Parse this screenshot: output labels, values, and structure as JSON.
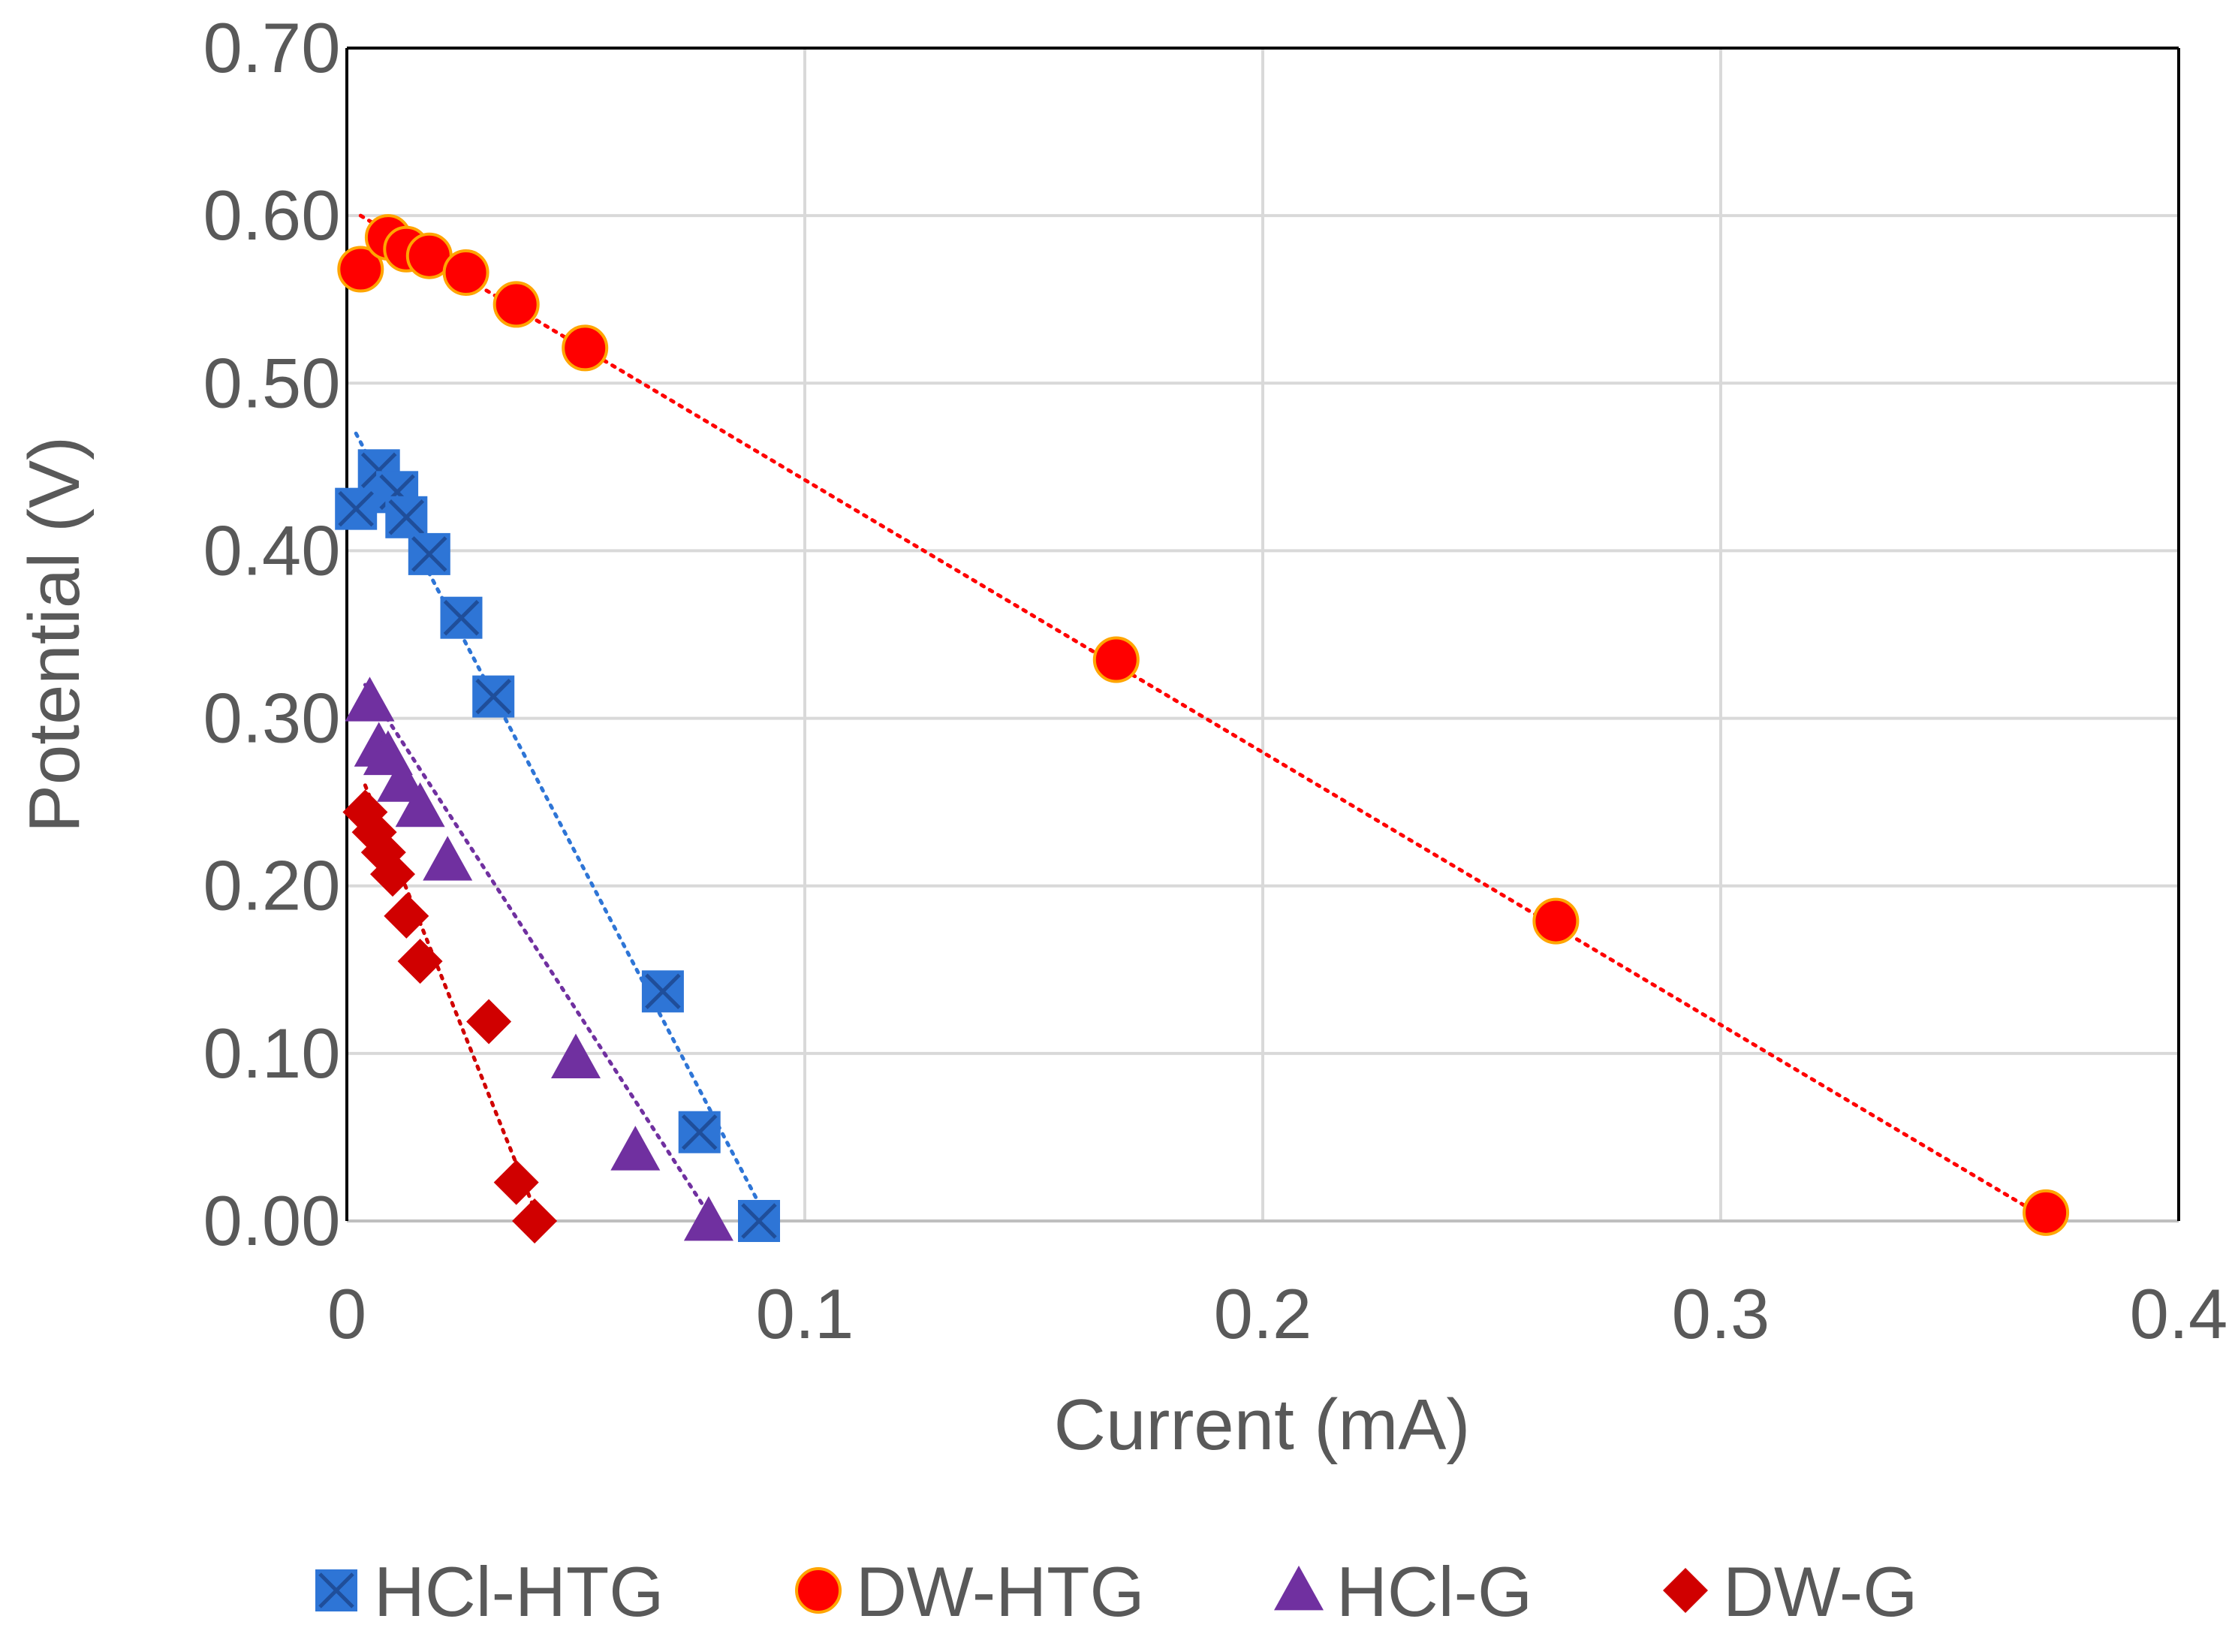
{
  "chart_data": {
    "type": "scatter",
    "title": "",
    "xlabel": "Current (mA)",
    "ylabel": "Potential (V)",
    "xlim": [
      0,
      0.4
    ],
    "ylim": [
      0,
      0.7
    ],
    "xticks": [
      0,
      0.1,
      0.2,
      0.3,
      0.4
    ],
    "xtick_labels": [
      "0",
      "0.1",
      "0.2",
      "0.3",
      "0.4"
    ],
    "yticks": [
      0,
      0.1,
      0.2,
      0.3,
      0.4,
      0.5,
      0.6,
      0.7
    ],
    "ytick_labels": [
      "0.00",
      "0.10",
      "0.20",
      "0.30",
      "0.40",
      "0.50",
      "0.60",
      "0.70"
    ],
    "grid": true,
    "legend_position": "bottom",
    "series": [
      {
        "name": "HCl-HTG",
        "marker": "x-square",
        "color": "#2E75D6",
        "x": [
          0.002,
          0.007,
          0.011,
          0.013,
          0.018,
          0.025,
          0.032,
          0.069,
          0.077,
          0.09
        ],
        "y": [
          0.425,
          0.448,
          0.435,
          0.42,
          0.398,
          0.36,
          0.313,
          0.137,
          0.053,
          0.0
        ],
        "trendline": {
          "x": [
            0.002,
            0.092
          ],
          "y": [
            0.47,
            0.0
          ],
          "color": "#2E75D6"
        }
      },
      {
        "name": "DW-HTG",
        "marker": "circle",
        "color": "#FF0000",
        "x": [
          0.003,
          0.009,
          0.013,
          0.018,
          0.026,
          0.037,
          0.052,
          0.168,
          0.264,
          0.371
        ],
        "y": [
          0.568,
          0.587,
          0.58,
          0.576,
          0.566,
          0.547,
          0.521,
          0.335,
          0.179,
          0.005
        ],
        "trendline": {
          "x": [
            0.003,
            0.372
          ],
          "y": [
            0.6,
            0.0
          ],
          "color": "#FF0000"
        }
      },
      {
        "name": "HCl-G",
        "marker": "triangle",
        "color": "#7030A0",
        "x": [
          0.005,
          0.007,
          0.009,
          0.012,
          0.016,
          0.022,
          0.05,
          0.063,
          0.079
        ],
        "y": [
          0.31,
          0.283,
          0.278,
          0.262,
          0.247,
          0.215,
          0.097,
          0.042,
          0.0
        ],
        "trendline": {
          "x": [
            0.004,
            0.08
          ],
          "y": [
            0.32,
            0.0
          ],
          "color": "#7030A0"
        }
      },
      {
        "name": "DW-G",
        "marker": "diamond",
        "color": "#D00000",
        "x": [
          0.004,
          0.006,
          0.008,
          0.01,
          0.013,
          0.016,
          0.031,
          0.037,
          0.041
        ],
        "y": [
          0.244,
          0.232,
          0.22,
          0.207,
          0.182,
          0.155,
          0.119,
          0.023,
          0.0
        ],
        "trendline": {
          "x": [
            0.004,
            0.042
          ],
          "y": [
            0.26,
            0.0
          ],
          "color": "#D00000"
        }
      }
    ]
  }
}
